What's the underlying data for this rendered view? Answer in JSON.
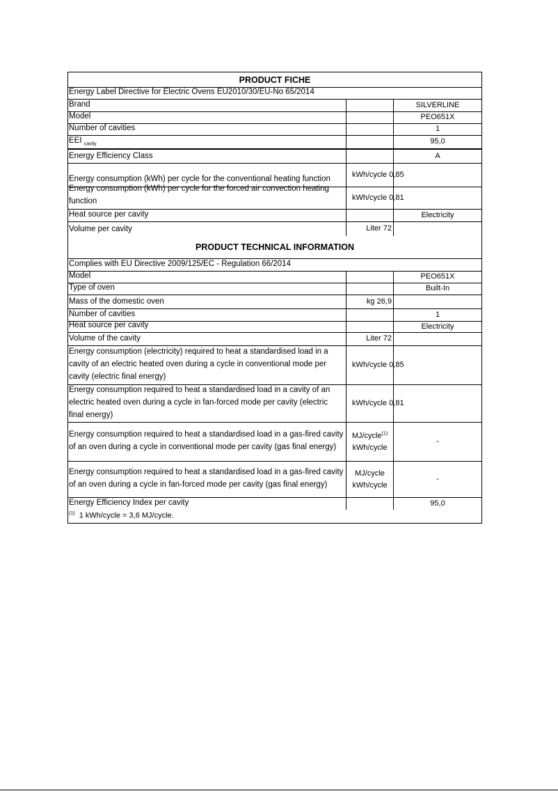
{
  "fiche": {
    "title": "PRODUCT FICHE",
    "directive": "Energy Label Directive for Electric Ovens EU2010/30/EU-No 65/2014",
    "rows": [
      {
        "label": "Brand",
        "unit": "",
        "value": "SILVERLINE"
      },
      {
        "label": "Model",
        "unit": "",
        "value": "PEO651X"
      },
      {
        "label": "Number of cavities",
        "unit": "",
        "value": "1"
      },
      {
        "label": "EEI",
        "label_sub": "cavity",
        "unit": "",
        "value": "95,0"
      },
      {
        "label": "Energy Efficiency Class",
        "unit": "",
        "value": "A"
      },
      {
        "label": "Energy consumption (kWh) per cycle for the conventional heating function",
        "unit": "kWh/cycle 0,85",
        "value": ""
      },
      {
        "label": "Energy consumption (kWh) per cycle for the forced air convection heating function",
        "unit": "kWh/cycle 0,81",
        "value": ""
      },
      {
        "label": "Heat source per cavity",
        "unit": "",
        "value": "Electricity"
      },
      {
        "label": "Volume per cavity",
        "unit": "Liter 72",
        "value": ""
      }
    ]
  },
  "technical": {
    "title": "PRODUCT TECHNICAL INFORMATION",
    "directive": "Complies with EU Directive 2009/125/EC - Regulation 66/2014",
    "rows": [
      {
        "label": "Model",
        "unit": "",
        "value": "PEO651X"
      },
      {
        "label": "Type of oven",
        "unit": "",
        "value": "Built-In"
      },
      {
        "label": "Mass of the domestic oven",
        "unit": "kg 26,9",
        "value": ""
      },
      {
        "label": "Number of cavities",
        "unit": "",
        "value": "1"
      },
      {
        "label": "Heat source per cavity",
        "unit": "",
        "value": "Electricity"
      },
      {
        "label": "Volume of the cavity",
        "unit": "Liter 72",
        "value": ""
      },
      {
        "label": "Energy consumption (electricity) required to heat a standardised load in a cavity of an electric heated oven during a cycle in conventional mode per cavity (electric final energy)",
        "unit": "kWh/cycle 0,85",
        "value": ""
      },
      {
        "label": "Energy consumption required to heat a standardised load in a cavity of an electric heated oven during a cycle in fan-forced mode per cavity (electric final energy)",
        "unit": "kWh/cycle 0,81",
        "value": ""
      },
      {
        "label": "Energy consumption required to heat a standardised load in a gas-fired cavity of an oven during a cycle in conventional mode per cavity (gas final energy)",
        "unit": "MJ/cycle",
        "unit_sup": "(1)",
        "unit2": "kWh/cycle",
        "value": "-"
      },
      {
        "label": "Energy consumption required to heat a standardised load in a gas-fired cavity of an oven during a cycle in fan-forced mode per cavity (gas final energy)",
        "unit": "MJ/cycle",
        "unit2": "kWh/cycle",
        "value": "-"
      },
      {
        "label": "Energy Efficiency Index per cavity",
        "unit": "",
        "value": "95,0"
      }
    ],
    "footnote_mark": "(1)",
    "footnote": "1 kWh/cycle = 3,6 MJ/cycle."
  }
}
